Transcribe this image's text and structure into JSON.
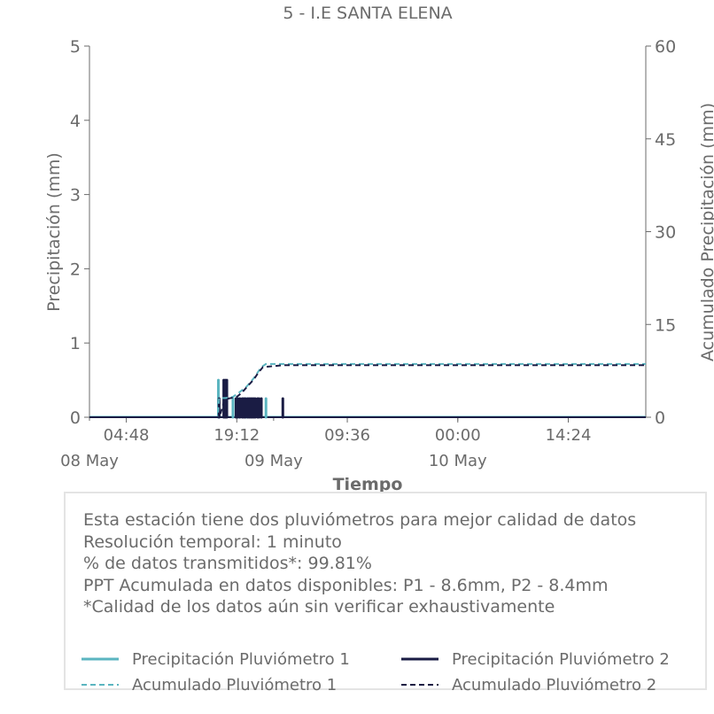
{
  "chart_data": {
    "type": "bar+line",
    "title": "5 - I.E SANTA ELENA",
    "xlabel": "Tiempo",
    "ylabel": "Precipitación (mm)",
    "y2label": "Acumulado Precipitación (mm)",
    "x_range_hours": [
      0,
      72.5
    ],
    "ylim": [
      0,
      5
    ],
    "y2lim": [
      0,
      60
    ],
    "yticks": [
      "0",
      "1",
      "2",
      "3",
      "4",
      "5"
    ],
    "y2ticks": [
      "0",
      "15",
      "30",
      "45",
      "60"
    ],
    "xticks": [
      {
        "hour": 4.8,
        "label": "04:48"
      },
      {
        "hour": 19.2,
        "label": "19:12"
      },
      {
        "hour": 33.6,
        "label": "09:36"
      },
      {
        "hour": 48.0,
        "label": "00:00"
      },
      {
        "hour": 62.4,
        "label": "14:24"
      }
    ],
    "date_ticks": [
      {
        "hour": 0,
        "label": "08 May"
      },
      {
        "hour": 24,
        "label": "09 May"
      },
      {
        "hour": 48,
        "label": "10 May"
      }
    ],
    "grid": false,
    "series": [
      {
        "name": "Precipitación Pluviómetro 1",
        "kind": "bar",
        "color": "#5bb5c0",
        "axis": "left",
        "x": [
          16.8,
          17.7,
          18.7,
          19.5,
          20.4,
          23.0
        ],
        "values": [
          0.5,
          0.25,
          0.25,
          0.25,
          0.25,
          0.25
        ]
      },
      {
        "name": "Precipitación Pluviómetro 2",
        "kind": "bar",
        "color": "#1a1c44",
        "axis": "left",
        "x": [
          16.9,
          17.5,
          17.7,
          17.9,
          19.1,
          19.3,
          19.6,
          19.9,
          20.1,
          20.3,
          20.6,
          20.8,
          21.0,
          21.2,
          21.4,
          21.6,
          21.9,
          22.1,
          22.4,
          25.2
        ],
        "values": [
          0.25,
          0.5,
          0.5,
          0.5,
          0.25,
          0.25,
          0.25,
          0.25,
          0.25,
          0.25,
          0.25,
          0.25,
          0.25,
          0.25,
          0.25,
          0.25,
          0.25,
          0.25,
          0.25,
          0.25
        ]
      },
      {
        "name": "Acumulado Pluviómetro 1",
        "kind": "line",
        "dashed": true,
        "color": "#5bb5c0",
        "axis": "right",
        "x": [
          0,
          16.7,
          16.9,
          17.7,
          18.7,
          19.5,
          20.5,
          21.4,
          22.4,
          23.0,
          72.5
        ],
        "values": [
          0,
          0,
          3.1,
          3.1,
          3.3,
          4.0,
          5.0,
          6.3,
          8.1,
          8.6,
          8.6
        ]
      },
      {
        "name": "Acumulado Pluviómetro 2",
        "kind": "line",
        "dashed": true,
        "color": "#1a1c44",
        "axis": "right",
        "x": [
          0,
          16.8,
          17.0,
          17.6,
          18.0,
          19.2,
          19.8,
          20.6,
          21.4,
          22.0,
          22.6,
          25.2,
          72.5
        ],
        "values": [
          0,
          0,
          0.3,
          2.8,
          3.0,
          3.3,
          3.9,
          5.0,
          6.1,
          7.2,
          8.1,
          8.4,
          8.4
        ]
      }
    ]
  },
  "info": {
    "lines": [
      "Esta estación tiene dos pluviómetros para mejor calidad de datos",
      "Resolución temporal: 1 minuto",
      "% de datos transmitidos*: 99.81%",
      "PPT Acumulada en datos disponibles: P1 - 8.6mm, P2 - 8.4mm",
      "*Calidad de los datos aún sin verificar exhaustivamente"
    ]
  },
  "legend": {
    "items": [
      {
        "label": "Precipitación Pluviómetro 1",
        "color": "#5bb5c0",
        "style": "solid"
      },
      {
        "label": "Precipitación Pluviómetro 2",
        "color": "#1a1c44",
        "style": "solid"
      },
      {
        "label": "Acumulado Pluviómetro 1",
        "color": "#5bb5c0",
        "style": "dashed"
      },
      {
        "label": "Acumulado Pluviómetro 2",
        "color": "#1a1c44",
        "style": "dashed"
      }
    ]
  }
}
